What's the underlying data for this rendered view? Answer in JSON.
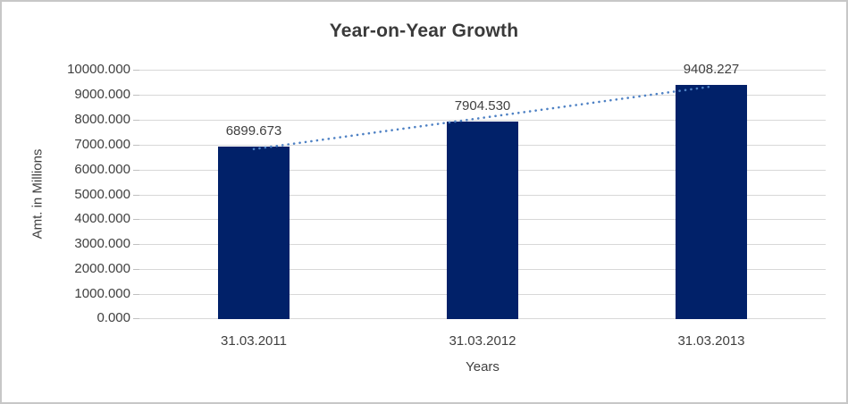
{
  "frame": {
    "background": "#ffffff",
    "border_color": "#c7c7c7"
  },
  "chart_data": {
    "type": "bar",
    "title": "Year-on-Year Growth",
    "xlabel": "Years",
    "ylabel": "Amt. in Millions",
    "categories": [
      "31.03.2011",
      "31.03.2012",
      "31.03.2013"
    ],
    "values": [
      6899.673,
      7904.53,
      9408.227
    ],
    "value_labels": [
      "6899.673",
      "7904.530",
      "9408.227"
    ],
    "ylim": [
      0,
      10000
    ],
    "ytick_interval": 1000,
    "ytick_labels": [
      "0.000",
      "1000.000",
      "2000.000",
      "3000.000",
      "4000.000",
      "5000.000",
      "6000.000",
      "7000.000",
      "8000.000",
      "9000.000",
      "10000.000"
    ],
    "grid": true,
    "legend": "none",
    "bar_color": "#012169",
    "gridline_color": "#d8d8d8",
    "tick_color": "#c0c0c0",
    "text_color": "#404040",
    "trendline": {
      "type": "linear",
      "style": "dotted",
      "color": "#4e81c4"
    }
  }
}
